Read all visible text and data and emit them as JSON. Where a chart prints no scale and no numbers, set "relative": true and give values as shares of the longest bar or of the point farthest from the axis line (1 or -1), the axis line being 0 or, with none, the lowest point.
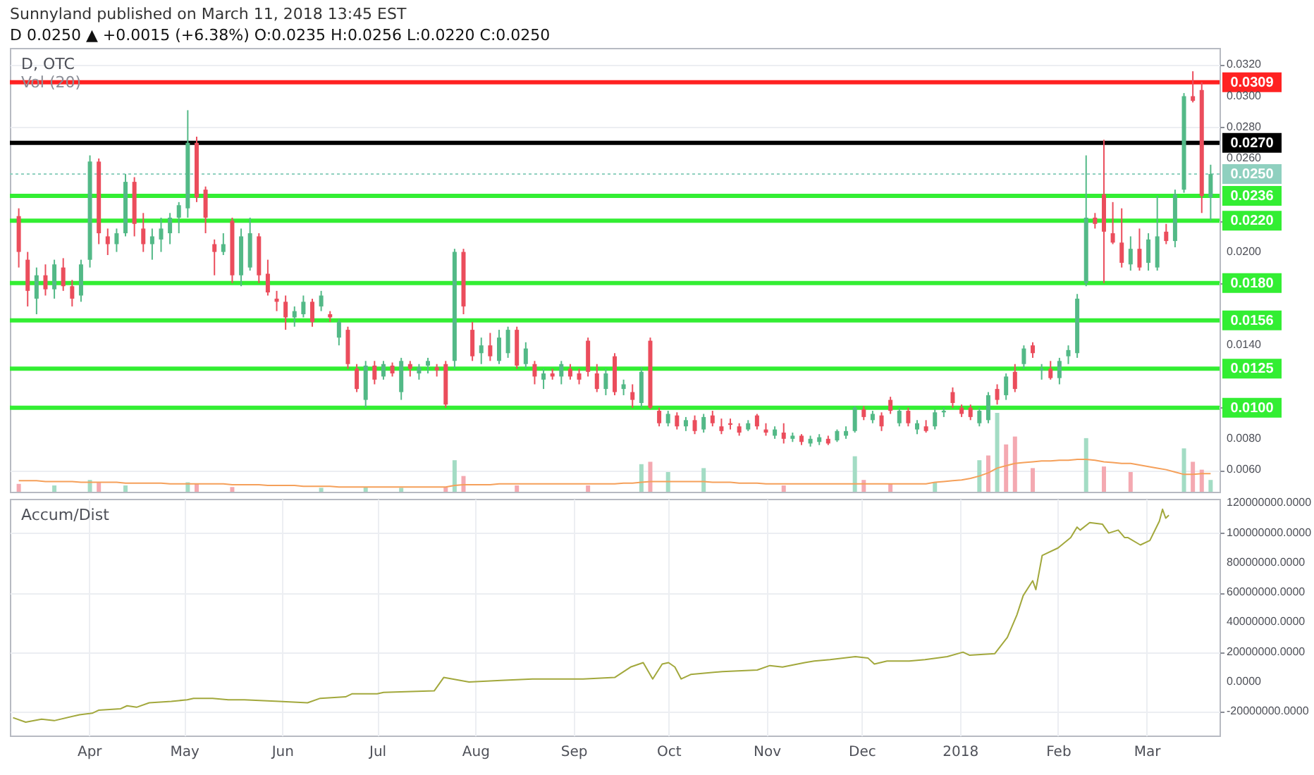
{
  "chart_data": [
    {
      "type": "candlestick",
      "title": "Sunnyland published on March 11, 2018 13:45 EST",
      "subtitle": "D 0.0250 ▲ +0.0015 (+6.38%) O:0.0235 H:0.0256 L:0.0220 C:0.0250",
      "annotations": [
        "D, OTC",
        "Vol (20)"
      ],
      "categories": [
        null,
        null,
        null,
        null,
        null,
        null,
        null,
        null,
        null,
        null,
        null,
        null,
        null,
        null,
        null,
        null,
        null,
        null,
        null,
        null,
        null,
        null,
        null,
        null,
        null,
        null,
        null,
        null,
        null,
        null,
        null,
        null,
        null,
        null,
        null,
        null,
        null,
        null,
        null,
        null,
        null,
        null,
        null,
        null,
        null,
        null,
        null,
        null,
        null,
        null,
        null,
        null,
        null,
        null,
        null,
        null,
        null,
        null,
        null,
        null,
        null,
        null,
        null,
        null,
        null,
        null,
        null,
        null,
        null,
        null,
        null,
        null,
        null,
        null,
        null,
        null,
        null,
        null,
        null,
        null,
        null,
        null,
        null,
        null,
        null,
        null,
        null,
        null,
        null,
        null,
        null,
        null,
        null,
        null,
        null,
        null,
        null,
        null,
        null,
        null,
        null,
        null,
        null,
        null,
        null,
        null,
        null,
        null,
        null,
        null,
        null,
        null,
        null,
        null,
        null,
        null,
        null,
        null,
        null,
        null,
        null,
        null,
        null,
        null,
        null,
        null,
        null,
        null,
        null,
        null,
        null,
        null,
        null,
        null,
        null
      ],
      "ohlc": [
        [
          0.0223,
          0.0228,
          0.019,
          0.02
        ],
        [
          0.0195,
          0.02,
          0.0165,
          0.0175
        ],
        [
          0.017,
          0.019,
          0.016,
          0.0185
        ],
        [
          0.0185,
          0.0192,
          0.0172,
          0.0176
        ],
        [
          0.0176,
          0.0195,
          0.017,
          0.0192
        ],
        [
          0.019,
          0.0196,
          0.0175,
          0.0178
        ],
        [
          0.0178,
          0.0182,
          0.0165,
          0.017
        ],
        [
          0.0172,
          0.0195,
          0.0168,
          0.0192
        ],
        [
          0.0195,
          0.0262,
          0.019,
          0.0258
        ],
        [
          0.0258,
          0.026,
          0.0205,
          0.0212
        ],
        [
          0.021,
          0.0215,
          0.0198,
          0.0205
        ],
        [
          0.0205,
          0.0215,
          0.02,
          0.0212
        ],
        [
          0.0212,
          0.025,
          0.021,
          0.0245
        ],
        [
          0.0245,
          0.0248,
          0.021,
          0.0218
        ],
        [
          0.0215,
          0.0225,
          0.02,
          0.0205
        ],
        [
          0.0205,
          0.0215,
          0.0195,
          0.021
        ],
        [
          0.0208,
          0.0222,
          0.02,
          0.0215
        ],
        [
          0.0212,
          0.0225,
          0.0205,
          0.0222
        ],
        [
          0.0222,
          0.0232,
          0.0212,
          0.023
        ],
        [
          0.0228,
          0.0291,
          0.0222,
          0.027
        ],
        [
          0.027,
          0.0274,
          0.0232,
          0.0235
        ],
        [
          0.024,
          0.0242,
          0.0212,
          0.0222
        ],
        [
          0.0205,
          0.0208,
          0.0185,
          0.02
        ],
        [
          0.02,
          0.0212,
          0.0198,
          0.0205
        ],
        [
          0.022,
          0.0222,
          0.018,
          0.0185
        ],
        [
          0.0185,
          0.0215,
          0.0178,
          0.021
        ],
        [
          0.019,
          0.0222,
          0.0188,
          0.0212
        ],
        [
          0.021,
          0.0212,
          0.018,
          0.0185
        ],
        [
          0.0186,
          0.0195,
          0.0172,
          0.0174
        ],
        [
          0.017,
          0.0175,
          0.0162,
          0.0168
        ],
        [
          0.0168,
          0.0172,
          0.015,
          0.0158
        ],
        [
          0.0158,
          0.0165,
          0.0152,
          0.0162
        ],
        [
          0.016,
          0.0172,
          0.0158,
          0.0168
        ],
        [
          0.0168,
          0.017,
          0.0152,
          0.0155
        ],
        [
          0.0165,
          0.0175,
          0.0162,
          0.0172
        ],
        [
          0.016,
          0.0162,
          0.0155,
          0.0158
        ],
        [
          0.0145,
          0.0157,
          0.014,
          0.0155
        ],
        [
          0.015,
          0.0152,
          0.0125,
          0.0128
        ],
        [
          0.0125,
          0.0128,
          0.011,
          0.0112
        ],
        [
          0.0105,
          0.013,
          0.01,
          0.0127
        ],
        [
          0.0127,
          0.013,
          0.0115,
          0.0118
        ],
        [
          0.012,
          0.013,
          0.0118,
          0.0128
        ],
        [
          0.0127,
          0.0129,
          0.012,
          0.0122
        ],
        [
          0.011,
          0.0132,
          0.0105,
          0.013
        ],
        [
          0.0128,
          0.013,
          0.012,
          0.0125
        ],
        [
          0.0122,
          0.0128,
          0.0118,
          0.0126
        ],
        [
          0.0127,
          0.0132,
          0.0122,
          0.013
        ],
        [
          0.0126,
          0.0128,
          0.012,
          0.0124
        ],
        [
          0.0128,
          0.013,
          0.01,
          0.0102
        ],
        [
          0.013,
          0.0202,
          0.0125,
          0.02
        ],
        [
          0.02,
          0.0202,
          0.016,
          0.0165
        ],
        [
          0.015,
          0.0155,
          0.013,
          0.0133
        ],
        [
          0.0135,
          0.0145,
          0.0128,
          0.014
        ],
        [
          0.014,
          0.0148,
          0.013,
          0.0133
        ],
        [
          0.013,
          0.015,
          0.0128,
          0.0145
        ],
        [
          0.0135,
          0.0152,
          0.0132,
          0.015
        ],
        [
          0.015,
          0.0152,
          0.0125,
          0.0127
        ],
        [
          0.0128,
          0.0142,
          0.0125,
          0.0138
        ],
        [
          0.0128,
          0.013,
          0.0115,
          0.012
        ],
        [
          0.0118,
          0.0125,
          0.0112,
          0.0122
        ],
        [
          0.0122,
          0.0125,
          0.0118,
          0.012
        ],
        [
          0.012,
          0.013,
          0.0115,
          0.0128
        ],
        [
          0.0125,
          0.0128,
          0.0118,
          0.012
        ],
        [
          0.0122,
          0.0125,
          0.0115,
          0.0118
        ],
        [
          0.0143,
          0.0145,
          0.012,
          0.0123
        ],
        [
          0.0122,
          0.0128,
          0.011,
          0.0112
        ],
        [
          0.0112,
          0.0125,
          0.0108,
          0.0122
        ],
        [
          0.0133,
          0.0135,
          0.0108,
          0.011
        ],
        [
          0.0112,
          0.0118,
          0.0108,
          0.0115
        ],
        [
          0.011,
          0.0115,
          0.01,
          0.0105
        ],
        [
          0.0103,
          0.0126,
          0.01,
          0.0123
        ],
        [
          0.0143,
          0.0145,
          0.0099,
          0.01
        ],
        [
          0.0098,
          0.01,
          0.0088,
          0.009
        ],
        [
          0.009,
          0.0098,
          0.0088,
          0.0096
        ],
        [
          0.0095,
          0.0097,
          0.0086,
          0.0088
        ],
        [
          0.0088,
          0.0094,
          0.0085,
          0.0092
        ],
        [
          0.0092,
          0.0095,
          0.0083,
          0.0085
        ],
        [
          0.0086,
          0.0096,
          0.0084,
          0.0094
        ],
        [
          0.0095,
          0.0098,
          0.0088,
          0.009
        ],
        [
          0.0088,
          0.0093,
          0.0083,
          0.0085
        ],
        [
          0.009,
          0.0093,
          0.0086,
          0.0089
        ],
        [
          0.0088,
          0.009,
          0.0082,
          0.0084
        ],
        [
          0.0086,
          0.0092,
          0.0085,
          0.009
        ],
        [
          0.0095,
          0.0096,
          0.0086,
          0.0088
        ],
        [
          0.0086,
          0.009,
          0.0082,
          0.0084
        ],
        [
          0.0082,
          0.0088,
          0.008,
          0.0086
        ],
        [
          0.0084,
          0.009,
          0.0077,
          0.008
        ],
        [
          0.008,
          0.0084,
          0.0078,
          0.0082
        ],
        [
          0.0082,
          0.0083,
          0.0076,
          0.0078
        ],
        [
          0.0077,
          0.0082,
          0.0075,
          0.008
        ],
        [
          0.0078,
          0.0083,
          0.0076,
          0.0081
        ],
        [
          0.008,
          0.0082,
          0.0076,
          0.0077
        ],
        [
          0.0079,
          0.0086,
          0.0078,
          0.0085
        ],
        [
          0.0082,
          0.0088,
          0.008,
          0.0085
        ],
        [
          0.0085,
          0.0101,
          0.0084,
          0.01
        ],
        [
          0.0099,
          0.0101,
          0.0092,
          0.0094
        ],
        [
          0.0092,
          0.0098,
          0.009,
          0.0096
        ],
        [
          0.0095,
          0.0097,
          0.0085,
          0.0088
        ],
        [
          0.0105,
          0.0107,
          0.0096,
          0.0098
        ],
        [
          0.009,
          0.01,
          0.0088,
          0.0098
        ],
        [
          0.0098,
          0.01,
          0.0088,
          0.009
        ],
        [
          0.0086,
          0.0092,
          0.0083,
          0.009
        ],
        [
          0.0088,
          0.0092,
          0.0084,
          0.0085
        ],
        [
          0.0088,
          0.0099,
          0.0086,
          0.0097
        ],
        [
          0.0097,
          0.01,
          0.0094,
          0.0098
        ],
        [
          0.011,
          0.0113,
          0.01,
          0.0103
        ],
        [
          0.01,
          0.0102,
          0.0094,
          0.0096
        ],
        [
          0.01,
          0.0102,
          0.0092,
          0.0094
        ],
        [
          0.009,
          0.01,
          0.0088,
          0.0098
        ],
        [
          0.0092,
          0.011,
          0.009,
          0.0108
        ],
        [
          0.0112,
          0.0115,
          0.0102,
          0.0105
        ],
        [
          0.0108,
          0.0122,
          0.0105,
          0.012
        ],
        [
          0.0123,
          0.0128,
          0.011,
          0.0112
        ],
        [
          0.0128,
          0.014,
          0.0125,
          0.0138
        ],
        [
          0.014,
          0.0142,
          0.0132,
          0.0135
        ],
        [
          0.0124,
          0.0128,
          0.0118,
          0.0125
        ],
        [
          0.0125,
          0.013,
          0.0118,
          0.0119
        ],
        [
          0.0119,
          0.0132,
          0.0115,
          0.013
        ],
        [
          0.0133,
          0.014,
          0.0128,
          0.0137
        ],
        [
          0.0135,
          0.0173,
          0.0132,
          0.017
        ],
        [
          0.018,
          0.0262,
          0.0178,
          0.0222
        ],
        [
          0.0222,
          0.0225,
          0.0215,
          0.0218
        ],
        [
          0.0237,
          0.0272,
          0.018,
          0.0213
        ],
        [
          0.0212,
          0.0232,
          0.0205,
          0.0206
        ],
        [
          0.0206,
          0.0228,
          0.019,
          0.0193
        ],
        [
          0.0192,
          0.021,
          0.0188,
          0.0202
        ],
        [
          0.0202,
          0.0215,
          0.0188,
          0.019
        ],
        [
          0.0193,
          0.0212,
          0.0188,
          0.0208
        ],
        [
          0.019,
          0.0236,
          0.0188,
          0.021
        ],
        [
          0.0213,
          0.0218,
          0.0205,
          0.0207
        ],
        [
          0.0207,
          0.024,
          0.0203,
          0.0237
        ],
        [
          0.024,
          0.0302,
          0.0238,
          0.03
        ],
        [
          0.03,
          0.0316,
          0.0296,
          0.0297
        ],
        [
          0.0304,
          0.0309,
          0.0225,
          0.0236
        ],
        [
          0.0235,
          0.0256,
          0.022,
          0.025
        ]
      ],
      "colors": [
        "#eb4d5c",
        "#eb4d5c",
        "#53b987",
        "#eb4d5c",
        "#53b987",
        "#eb4d5c",
        "#eb4d5c",
        "#53b987",
        "#53b987",
        "#eb4d5c",
        "#eb4d5c",
        "#53b987",
        "#53b987",
        "#eb4d5c",
        "#eb4d5c",
        "#53b987",
        "#53b987",
        "#53b987",
        "#53b987",
        "#53b987",
        "#eb4d5c",
        "#eb4d5c",
        "#eb4d5c",
        "#53b987",
        "#eb4d5c",
        "#53b987",
        "#53b987",
        "#eb4d5c",
        "#eb4d5c",
        "#eb4d5c",
        "#eb4d5c",
        "#53b987",
        "#53b987",
        "#eb4d5c",
        "#53b987",
        "#eb4d5c",
        "#53b987",
        "#eb4d5c",
        "#eb4d5c",
        "#53b987",
        "#eb4d5c",
        "#53b987",
        "#eb4d5c",
        "#53b987",
        "#eb4d5c",
        "#53b987",
        "#53b987",
        "#eb4d5c",
        "#eb4d5c",
        "#53b987",
        "#eb4d5c",
        "#eb4d5c",
        "#53b987",
        "#eb4d5c",
        "#53b987",
        "#53b987",
        "#eb4d5c",
        "#53b987",
        "#eb4d5c",
        "#53b987",
        "#eb4d5c",
        "#53b987",
        "#eb4d5c",
        "#eb4d5c",
        "#eb4d5c",
        "#eb4d5c",
        "#53b987",
        "#eb4d5c",
        "#53b987",
        "#eb4d5c",
        "#53b987",
        "#eb4d5c",
        "#eb4d5c",
        "#53b987",
        "#eb4d5c",
        "#53b987",
        "#eb4d5c",
        "#53b987",
        "#eb4d5c",
        "#eb4d5c",
        "#eb4d5c",
        "#eb4d5c",
        "#53b987",
        "#eb4d5c",
        "#eb4d5c",
        "#53b987",
        "#eb4d5c",
        "#53b987",
        "#eb4d5c",
        "#53b987",
        "#53b987",
        "#eb4d5c",
        "#53b987",
        "#53b987",
        "#53b987",
        "#eb4d5c",
        "#53b987",
        "#eb4d5c",
        "#eb4d5c",
        "#53b987",
        "#eb4d5c",
        "#53b987",
        "#eb4d5c",
        "#53b987",
        "#53b987",
        "#eb4d5c",
        "#eb4d5c",
        "#eb4d5c",
        "#53b987",
        "#53b987",
        "#eb4d5c",
        "#53b987",
        "#eb4d5c",
        "#53b987",
        "#eb4d5c",
        "#53b987",
        "#eb4d5c",
        "#53b987",
        "#53b987",
        "#53b987",
        "#53b987",
        "#eb4d5c",
        "#eb4d5c",
        "#eb4d5c",
        "#eb4d5c",
        "#53b987",
        "#eb4d5c",
        "#53b987",
        "#53b987",
        "#eb4d5c",
        "#53b987",
        "#53b987",
        "#eb4d5c",
        "#eb4d5c",
        "#53b987"
      ],
      "ylim": [
        0.0046,
        0.0331
      ],
      "yticks": [
        {
          "value": 0.006,
          "label": "0.0060"
        },
        {
          "value": 0.008,
          "label": "0.0080"
        },
        {
          "value": 0.01,
          "label": null
        },
        {
          "value": 0.014,
          "label": "0.0140"
        },
        {
          "value": 0.018,
          "label": null
        },
        {
          "value": 0.02,
          "label": "0.0200"
        },
        {
          "value": 0.022,
          "label": null
        },
        {
          "value": 0.026,
          "label": "0.0260"
        },
        {
          "value": 0.028,
          "label": "0.0280"
        },
        {
          "value": 0.03,
          "label": "0.0300"
        },
        {
          "value": 0.032,
          "label": "0.0320"
        }
      ],
      "grid": "y",
      "tick_labels": "y",
      "ref_lines": [
        {
          "axis": "y",
          "value": 0.0309,
          "label": "0.0309",
          "color": "#ff2222"
        },
        {
          "axis": "y",
          "value": 0.027,
          "label": "0.0270",
          "color": "#000000"
        },
        {
          "axis": "y",
          "value": 0.025,
          "label": "0.0250",
          "color": "#8fd0bf",
          "line_style": "dotted"
        },
        {
          "axis": "y",
          "value": 0.0236,
          "label": "0.0236",
          "color": "#33ee33"
        },
        {
          "axis": "y",
          "value": 0.022,
          "label": "0.0220",
          "color": "#33ee33"
        },
        {
          "axis": "y",
          "value": 0.018,
          "label": "0.0180",
          "color": "#33ee33"
        },
        {
          "axis": "y",
          "value": 0.0156,
          "label": "0.0156",
          "color": "#33ee33"
        },
        {
          "axis": "y",
          "value": 0.0125,
          "label": "0.0125",
          "color": "#33ee33"
        },
        {
          "axis": "y",
          "value": 0.01,
          "label": "0.0100",
          "color": "#33ee33"
        }
      ]
    },
    {
      "type": "bar",
      "relative": true,
      "categories": [
        null,
        null,
        null,
        null,
        null,
        null,
        null,
        null,
        null,
        null,
        null,
        null,
        null,
        null,
        null,
        null,
        null,
        null,
        null,
        null,
        null,
        null,
        null,
        null,
        null,
        null,
        null,
        null,
        null,
        null,
        null,
        null,
        null,
        null,
        null,
        null,
        null,
        null,
        null,
        null,
        null,
        null,
        null,
        null,
        null,
        null,
        null,
        null,
        null,
        null,
        null,
        null,
        null,
        null,
        null,
        null,
        null,
        null,
        null,
        null,
        null,
        null,
        null,
        null,
        null,
        null,
        null,
        null,
        null,
        null,
        null,
        null,
        null,
        null,
        null,
        null,
        null,
        null,
        null,
        null,
        null,
        null,
        null,
        null,
        null,
        null,
        null,
        null,
        null,
        null,
        null,
        null,
        null,
        null,
        null,
        null,
        null,
        null,
        null,
        null,
        null,
        null,
        null,
        null,
        null,
        null,
        null,
        null,
        null,
        null,
        null,
        null,
        null,
        null,
        null,
        null,
        null,
        null,
        null,
        null,
        null,
        null,
        null,
        null,
        null,
        null,
        null,
        null,
        null,
        null,
        null,
        null,
        null,
        null,
        null
      ],
      "series": [
        {
          "values": [
            0.1,
            null,
            null,
            null,
            0.08,
            null,
            null,
            null,
            0.15,
            0.12,
            null,
            null,
            0.08,
            null,
            null,
            null,
            null,
            null,
            null,
            0.12,
            0.1,
            null,
            null,
            null,
            0.06,
            null,
            null,
            null,
            null,
            null,
            null,
            null,
            null,
            null,
            0.05,
            null,
            null,
            null,
            null,
            0.06,
            null,
            null,
            null,
            0.05,
            null,
            null,
            null,
            null,
            0.06,
            0.4,
            0.2,
            null,
            null,
            null,
            null,
            null,
            0.08,
            null,
            null,
            null,
            null,
            null,
            null,
            null,
            0.08,
            null,
            null,
            null,
            null,
            null,
            0.35,
            0.38,
            null,
            0.25,
            null,
            null,
            null,
            0.3,
            null,
            null,
            null,
            null,
            null,
            null,
            null,
            null,
            0.08,
            null,
            null,
            null,
            null,
            null,
            null,
            null,
            0.45,
            0.15,
            null,
            null,
            0.1,
            null,
            null,
            null,
            null,
            0.12,
            null,
            null,
            null,
            null,
            0.4,
            0.46,
            1,
            0.6,
            0.7,
            null,
            0.3,
            null,
            null,
            null,
            null,
            null,
            0.68,
            null,
            0.32,
            null,
            null,
            0.25,
            null,
            null,
            null,
            null,
            null,
            0.55,
            0.38,
            0.28,
            0.15
          ],
          "colors": [
            "#f4a9b1",
            null,
            null,
            null,
            "#a3dcc4",
            null,
            null,
            null,
            "#a3dcc4",
            "#f4a9b1",
            null,
            null,
            "#a3dcc4",
            null,
            null,
            null,
            null,
            null,
            null,
            "#a3dcc4",
            "#f4a9b1",
            null,
            null,
            null,
            "#f4a9b1",
            null,
            null,
            null,
            null,
            null,
            null,
            null,
            null,
            null,
            "#a3dcc4",
            null,
            null,
            null,
            null,
            "#a3dcc4",
            null,
            null,
            null,
            "#a3dcc4",
            null,
            null,
            null,
            null,
            "#f4a9b1",
            "#a3dcc4",
            "#f4a9b1",
            null,
            null,
            null,
            null,
            null,
            "#f4a9b1",
            null,
            null,
            null,
            null,
            null,
            null,
            null,
            "#f4a9b1",
            null,
            null,
            null,
            null,
            null,
            "#a3dcc4",
            "#f4a9b1",
            null,
            "#a3dcc4",
            null,
            null,
            null,
            "#a3dcc4",
            null,
            null,
            null,
            null,
            null,
            null,
            null,
            null,
            "#f4a9b1",
            null,
            null,
            null,
            null,
            null,
            null,
            null,
            "#a3dcc4",
            "#f4a9b1",
            null,
            null,
            "#f4a9b1",
            null,
            null,
            null,
            null,
            "#a3dcc4",
            null,
            null,
            null,
            null,
            "#a3dcc4",
            "#f4a9b1",
            "#a3dcc4",
            "#f4a9b1",
            "#f4a9b1",
            null,
            "#f4a9b1",
            null,
            null,
            null,
            null,
            null,
            "#a3dcc4",
            null,
            "#f4a9b1",
            null,
            null,
            "#f4a9b1",
            null,
            null,
            null,
            null,
            null,
            "#a3dcc4",
            "#f4a9b1",
            "#f4a9b1",
            "#a3dcc4"
          ]
        },
        {
          "type": "line",
          "color": "#f5a05a",
          "values": [
            0.14,
            0.14,
            0.14,
            0.13,
            0.13,
            0.13,
            0.13,
            0.12,
            0.12,
            0.12,
            0.12,
            0.12,
            0.11,
            0.11,
            0.11,
            0.11,
            0.11,
            0.1,
            0.1,
            0.1,
            0.1,
            0.1,
            0.1,
            0.1,
            0.09,
            0.09,
            0.09,
            0.09,
            0.08,
            0.08,
            0.08,
            0.08,
            0.07,
            0.07,
            0.07,
            0.07,
            0.06,
            0.06,
            0.06,
            0.06,
            0.06,
            0.06,
            0.06,
            0.06,
            0.06,
            0.06,
            0.06,
            0.06,
            0.06,
            0.08,
            0.09,
            0.09,
            0.09,
            0.09,
            0.1,
            0.1,
            0.1,
            0.1,
            0.1,
            0.1,
            0.1,
            0.1,
            0.1,
            0.1,
            0.1,
            0.1,
            0.1,
            0.1,
            0.11,
            0.11,
            0.12,
            0.13,
            0.13,
            0.13,
            0.13,
            0.13,
            0.13,
            0.13,
            0.12,
            0.12,
            0.12,
            0.11,
            0.11,
            0.11,
            0.1,
            0.1,
            0.1,
            0.1,
            0.1,
            0.1,
            0.1,
            0.1,
            0.1,
            0.1,
            0.1,
            0.1,
            0.1,
            0.1,
            0.1,
            0.1,
            0.1,
            0.1,
            0.1,
            0.12,
            0.13,
            0.14,
            0.15,
            0.17,
            0.2,
            0.24,
            0.3,
            0.33,
            0.36,
            0.37,
            0.38,
            0.39,
            0.39,
            0.4,
            0.4,
            0.41,
            0.41,
            0.4,
            0.38,
            0.37,
            0.36,
            0.36,
            0.34,
            0.32,
            0.3,
            0.28,
            0.25,
            0.22,
            0.22,
            0.23,
            0.23
          ]
        }
      ]
    },
    {
      "type": "line",
      "annotations": [
        "Accum/Dist"
      ],
      "color": "#a2a83c",
      "xlim": [
        "2017-03-07",
        "2018-03-24"
      ],
      "x": [
        "2017-03-08",
        "2017-03-12",
        "2017-03-17",
        "2017-03-21",
        "2017-03-29",
        "2017-04-02",
        "2017-04-04",
        "2017-04-11",
        "2017-04-13",
        "2017-04-16",
        "2017-04-20",
        "2017-04-27",
        "2017-05-02",
        "2017-05-04",
        "2017-05-10",
        "2017-05-15",
        "2017-05-20",
        "2017-05-31",
        "2017-06-09",
        "2017-06-13",
        "2017-06-21",
        "2017-06-23",
        "2017-07-01",
        "2017-07-03",
        "2017-07-19",
        "2017-07-22",
        "2017-07-30",
        "2017-08-09",
        "2017-08-19",
        "2017-09-04",
        "2017-09-14",
        "2017-09-19",
        "2017-09-23",
        "2017-09-26",
        "2017-09-29",
        "2017-10-01",
        "2017-10-03",
        "2017-10-05",
        "2017-10-08",
        "2017-10-18",
        "2017-10-29",
        "2017-11-02",
        "2017-11-06",
        "2017-11-13",
        "2017-11-16",
        "2017-11-21",
        "2017-11-29",
        "2017-12-03",
        "2017-12-05",
        "2017-12-09",
        "2017-12-16",
        "2017-12-21",
        "2017-12-28",
        "2018-01-02",
        "2018-01-04",
        "2018-01-12",
        "2018-01-16",
        "2018-01-19",
        "2018-01-21",
        "2018-01-24",
        "2018-01-25",
        "2018-01-27",
        "2018-02-01",
        "2018-02-05",
        "2018-02-07",
        "2018-02-08",
        "2018-02-11",
        "2018-02-15",
        "2018-02-17",
        "2018-02-20",
        "2018-02-22",
        "2018-02-23",
        "2018-02-27",
        "2018-03-02",
        "2018-03-05",
        "2018-03-06",
        "2018-03-07",
        "2018-03-08"
      ],
      "values": [
        -24000000,
        -27000000,
        -25000000,
        -26000000,
        -22000000,
        -21000000,
        -19000000,
        -18000000,
        -16000000,
        -17000000,
        -14000000,
        -13000000,
        -12000000,
        -11000000,
        -11000000,
        -12000000,
        -12000000,
        -13000000,
        -14000000,
        -11000000,
        -10000000,
        -8000000,
        -8000000,
        -7000000,
        -6000000,
        3000000,
        0,
        1000000,
        2000000,
        2000000,
        3000000,
        10000000,
        13000000,
        2000000,
        12000000,
        13000000,
        10000000,
        2000000,
        5000000,
        7000000,
        8000000,
        11000000,
        10000000,
        13000000,
        14000000,
        15000000,
        17000000,
        16000000,
        12000000,
        14000000,
        14000000,
        15000000,
        17000000,
        20000000,
        18000000,
        19000000,
        30000000,
        45000000,
        58000000,
        68000000,
        62000000,
        85000000,
        90000000,
        97000000,
        104000000,
        102000000,
        107000000,
        106000000,
        100000000,
        102000000,
        97000000,
        97000000,
        92000000,
        95000000,
        108000000,
        116000000,
        110000000,
        112000000
      ],
      "xticks": [
        {
          "value": "2017-04-01",
          "label": "Apr"
        },
        {
          "value": "2017-05-01",
          "label": "May"
        },
        {
          "value": "2017-06-01",
          "label": "Jun"
        },
        {
          "value": "2017-07-01",
          "label": "Jul"
        },
        {
          "value": "2017-08-01",
          "label": "Aug"
        },
        {
          "value": "2017-09-01",
          "label": "Sep"
        },
        {
          "value": "2017-10-01",
          "label": "Oct"
        },
        {
          "value": "2017-11-01",
          "label": "Nov"
        },
        {
          "value": "2017-12-01",
          "label": "Dec"
        },
        {
          "value": "2018-01-01",
          "label": "2018"
        },
        {
          "value": "2018-02-01",
          "label": "Feb"
        },
        {
          "value": "2018-03-01",
          "label": "Mar"
        }
      ],
      "ylim": [
        -36000000,
        123000000
      ],
      "yticks": [
        {
          "value": -20000000,
          "label": "-20000000.0000"
        },
        {
          "value": 0,
          "label": "0.0000"
        },
        {
          "value": 20000000,
          "label": "20000000.0000"
        },
        {
          "value": 40000000,
          "label": "40000000.0000"
        },
        {
          "value": 60000000,
          "label": "60000000.0000"
        },
        {
          "value": 80000000,
          "label": "80000000.0000"
        },
        {
          "value": 100000000,
          "label": "100000000.0000"
        },
        {
          "value": 120000000,
          "label": "120000000.0000"
        }
      ],
      "grid": true
    }
  ]
}
